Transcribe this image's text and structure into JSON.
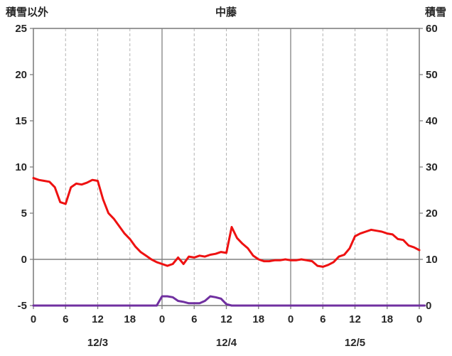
{
  "header": {
    "left_axis_title": "積雪以外",
    "title": "中藤",
    "right_axis_title": "積雪"
  },
  "chart_data": {
    "type": "line",
    "title": "中藤",
    "left_axis": {
      "label": "積雪以外",
      "min": -5,
      "max": 25,
      "ticks": [
        -5,
        0,
        5,
        10,
        15,
        20,
        25
      ]
    },
    "right_axis": {
      "label": "積雪",
      "min": 0,
      "max": 60,
      "ticks": [
        0,
        10,
        20,
        30,
        40,
        50,
        60
      ]
    },
    "x_axis": {
      "unit": "hour",
      "min": 0,
      "max": 72,
      "tick_interval": 6,
      "tick_labels": [
        "0",
        "6",
        "12",
        "18",
        "0",
        "6",
        "12",
        "18",
        "0",
        "6",
        "12",
        "18",
        "0"
      ],
      "day_labels": [
        {
          "label": "12/3",
          "hour": 12
        },
        {
          "label": "12/4",
          "hour": 36
        },
        {
          "label": "12/5",
          "hour": 60
        }
      ],
      "day_boundary_hours": [
        24,
        48
      ]
    },
    "grid": {
      "vertical_dashed": true,
      "horizontal": false,
      "zero_line_left_axis": true
    },
    "series": [
      {
        "name": "積雪以外",
        "axis": "left",
        "color": "#ee1111",
        "values": [
          8.8,
          8.6,
          8.5,
          8.4,
          7.8,
          6.2,
          6.0,
          7.8,
          8.2,
          8.1,
          8.3,
          8.6,
          8.5,
          6.5,
          5.0,
          4.4,
          3.6,
          2.8,
          2.2,
          1.4,
          0.8,
          0.4,
          0.0,
          -0.3,
          -0.5,
          -0.7,
          -0.5,
          0.2,
          -0.5,
          0.3,
          0.2,
          0.4,
          0.3,
          0.5,
          0.6,
          0.8,
          0.7,
          3.5,
          2.3,
          1.7,
          1.2,
          0.4,
          0.0,
          -0.2,
          -0.2,
          -0.1,
          -0.1,
          0.0,
          -0.1,
          -0.1,
          0.0,
          -0.1,
          -0.2,
          -0.7,
          -0.8,
          -0.6,
          -0.3,
          0.3,
          0.5,
          1.2,
          2.5,
          2.8,
          3.0,
          3.2,
          3.1,
          3.0,
          2.8,
          2.7,
          2.2,
          2.1,
          1.5,
          1.3,
          1.0
        ]
      },
      {
        "name": "積雪",
        "axis": "right",
        "color": "#7030a0",
        "values": [
          0,
          0,
          0,
          0,
          0,
          0,
          0,
          0,
          0,
          0,
          0,
          0,
          0,
          0,
          0,
          0,
          0,
          0,
          0,
          0,
          0,
          0,
          0,
          0,
          2,
          2,
          1.8,
          1,
          0.8,
          0.5,
          0.5,
          0.5,
          1,
          2,
          1.8,
          1.5,
          0.3,
          0,
          0,
          0,
          0,
          0,
          0,
          0,
          0,
          0,
          0,
          0,
          0,
          0,
          0,
          0,
          0,
          0,
          0,
          0,
          0,
          0,
          0,
          0,
          0,
          0,
          0,
          0,
          0,
          0,
          0,
          0,
          0,
          0,
          0,
          0,
          0,
          0
        ]
      }
    ]
  },
  "style": {
    "tick_text_color": "#262626",
    "border_color": "#808080",
    "grid_dashed_color": "#b3b3b3",
    "day_line_color": "#8c8c8c",
    "zero_line_color": "#808080"
  }
}
